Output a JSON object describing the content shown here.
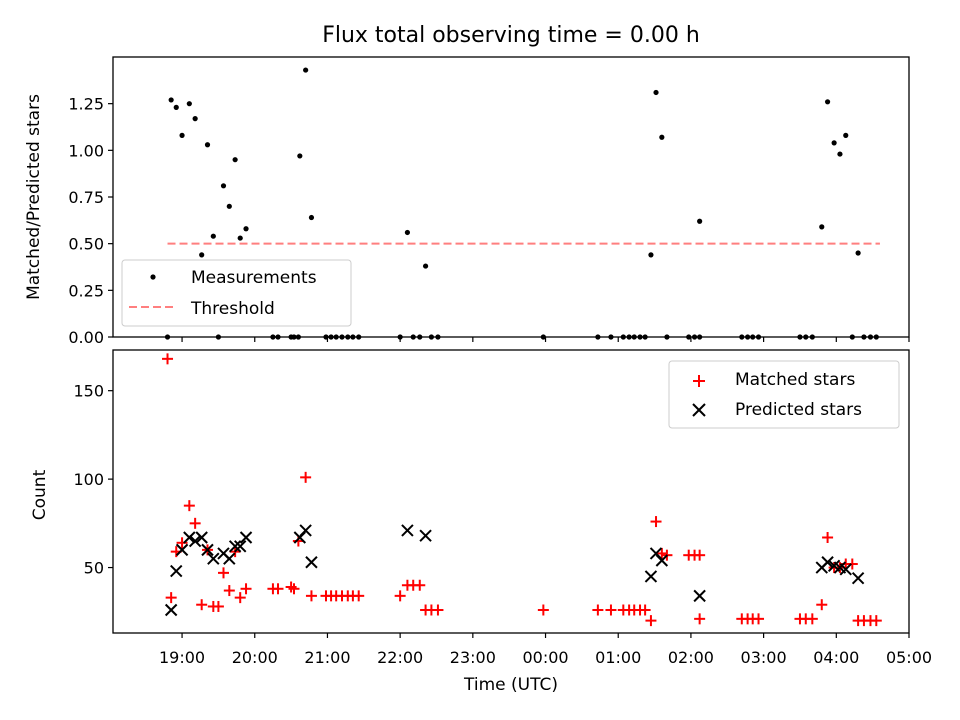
{
  "colors": {
    "measurement": "#000000",
    "threshold": "#ff7f7f",
    "matched": "#ff0000",
    "predicted": "#000000"
  },
  "chart_data": [
    {
      "type": "scatter",
      "title": "Flux total observing time = 0.00 h",
      "xlabel": "",
      "ylabel": "Matched/Predicted stars",
      "x_unit": "hours since 00:00 UTC (negative = previous day)",
      "xlim": [
        -5.95,
        5.0
      ],
      "ylim": [
        0,
        1.5
      ],
      "yticks": [
        0.0,
        0.25,
        0.5,
        0.75,
        1.0,
        1.25
      ],
      "ytick_labels": [
        "0.00",
        "0.25",
        "0.50",
        "0.75",
        "1.00",
        "1.25"
      ],
      "legend": {
        "position": "lower-left",
        "entries": [
          "Measurements",
          "Threshold"
        ]
      },
      "series": [
        {
          "name": "Measurements",
          "marker": "dot",
          "points": [
            [
              -5.2,
              0
            ],
            [
              -5.15,
              1.27
            ],
            [
              -5.08,
              1.23
            ],
            [
              -5.0,
              1.08
            ],
            [
              -4.9,
              1.25
            ],
            [
              -4.82,
              1.17
            ],
            [
              -4.73,
              0.44
            ],
            [
              -4.65,
              1.03
            ],
            [
              -4.57,
              0.54
            ],
            [
              -4.43,
              0.81
            ],
            [
              -4.35,
              0.7
            ],
            [
              -4.27,
              0.95
            ],
            [
              -4.2,
              0.53
            ],
            [
              -4.12,
              0.58
            ],
            [
              -4.5,
              0
            ],
            [
              -3.75,
              0
            ],
            [
              -3.68,
              0
            ],
            [
              -3.5,
              0
            ],
            [
              -3.46,
              0
            ],
            [
              -3.4,
              0
            ],
            [
              -3.38,
              0.97
            ],
            [
              -3.3,
              1.43
            ],
            [
              -3.22,
              0.64
            ],
            [
              -3.02,
              0
            ],
            [
              -2.95,
              0
            ],
            [
              -2.88,
              0
            ],
            [
              -2.8,
              0
            ],
            [
              -2.72,
              0
            ],
            [
              -2.65,
              0
            ],
            [
              -2.57,
              0
            ],
            [
              -2.0,
              0
            ],
            [
              -1.9,
              0.56
            ],
            [
              -1.82,
              0
            ],
            [
              -1.73,
              0
            ],
            [
              -1.65,
              0.38
            ],
            [
              -1.57,
              0
            ],
            [
              -1.48,
              0
            ],
            [
              -0.03,
              0
            ],
            [
              0.72,
              0
            ],
            [
              0.9,
              0
            ],
            [
              1.07,
              0
            ],
            [
              1.15,
              0
            ],
            [
              1.22,
              0
            ],
            [
              1.3,
              0
            ],
            [
              1.37,
              0
            ],
            [
              1.45,
              0.44
            ],
            [
              1.52,
              1.31
            ],
            [
              1.6,
              1.07
            ],
            [
              1.67,
              0
            ],
            [
              1.97,
              0
            ],
            [
              2.05,
              0
            ],
            [
              2.12,
              0.62
            ],
            [
              2.12,
              0
            ],
            [
              2.7,
              0
            ],
            [
              2.78,
              0
            ],
            [
              2.85,
              0
            ],
            [
              2.93,
              0
            ],
            [
              3.5,
              0
            ],
            [
              3.58,
              0
            ],
            [
              3.67,
              0
            ],
            [
              3.8,
              0.59
            ],
            [
              3.88,
              1.26
            ],
            [
              3.97,
              1.04
            ],
            [
              4.05,
              0.98
            ],
            [
              4.13,
              1.08
            ],
            [
              4.22,
              0
            ],
            [
              4.3,
              0.45
            ],
            [
              4.38,
              0
            ],
            [
              4.47,
              0
            ],
            [
              4.55,
              0
            ]
          ]
        },
        {
          "name": "Threshold",
          "style": "dashed-line",
          "x": [
            -5.2,
            4.6
          ],
          "y": [
            0.5,
            0.5
          ]
        }
      ]
    },
    {
      "type": "scatter",
      "title": "",
      "xlabel": "Time (UTC)",
      "ylabel": "Count",
      "x_unit": "hours since 00:00 UTC (negative = previous day)",
      "xlim": [
        -5.95,
        5.0
      ],
      "ylim": [
        13,
        173
      ],
      "yticks": [
        50,
        100,
        150
      ],
      "ytick_labels": [
        "50",
        "100",
        "150"
      ],
      "xticks": [
        -5,
        -4,
        -3,
        -2,
        -1,
        0,
        1,
        2,
        3,
        4,
        5
      ],
      "xtick_labels": [
        "19:00",
        "20:00",
        "21:00",
        "22:00",
        "23:00",
        "00:00",
        "01:00",
        "02:00",
        "03:00",
        "04:00",
        "05:00"
      ],
      "legend": {
        "position": "top-right",
        "entries": [
          "Matched stars",
          "Predicted stars"
        ]
      },
      "series": [
        {
          "name": "Matched stars",
          "marker": "plus",
          "points": [
            [
              -5.2,
              168
            ],
            [
              -5.15,
              33
            ],
            [
              -5.08,
              59
            ],
            [
              -5.0,
              64
            ],
            [
              -4.9,
              85
            ],
            [
              -4.82,
              75
            ],
            [
              -4.73,
              29
            ],
            [
              -4.65,
              60
            ],
            [
              -4.57,
              28
            ],
            [
              -4.5,
              28
            ],
            [
              -4.43,
              47
            ],
            [
              -4.35,
              37
            ],
            [
              -4.27,
              59
            ],
            [
              -4.2,
              33
            ],
            [
              -4.12,
              38
            ],
            [
              -3.75,
              38
            ],
            [
              -3.68,
              38
            ],
            [
              -3.5,
              39
            ],
            [
              -3.46,
              38
            ],
            [
              -3.4,
              65
            ],
            [
              -3.3,
              101
            ],
            [
              -3.22,
              34
            ],
            [
              -3.02,
              34
            ],
            [
              -2.95,
              34
            ],
            [
              -2.88,
              34
            ],
            [
              -2.8,
              34
            ],
            [
              -2.72,
              34
            ],
            [
              -2.65,
              34
            ],
            [
              -2.57,
              34
            ],
            [
              -2.0,
              34
            ],
            [
              -1.9,
              40
            ],
            [
              -1.82,
              40
            ],
            [
              -1.73,
              40
            ],
            [
              -1.65,
              26
            ],
            [
              -1.57,
              26
            ],
            [
              -1.48,
              26
            ],
            [
              -0.03,
              26
            ],
            [
              0.72,
              26
            ],
            [
              0.9,
              26
            ],
            [
              1.07,
              26
            ],
            [
              1.15,
              26
            ],
            [
              1.22,
              26
            ],
            [
              1.3,
              26
            ],
            [
              1.37,
              26
            ],
            [
              1.45,
              20
            ],
            [
              1.52,
              76
            ],
            [
              1.6,
              58
            ],
            [
              1.67,
              57
            ],
            [
              1.97,
              57
            ],
            [
              2.05,
              57
            ],
            [
              2.12,
              57
            ],
            [
              2.12,
              21
            ],
            [
              2.7,
              21
            ],
            [
              2.78,
              21
            ],
            [
              2.85,
              21
            ],
            [
              2.93,
              21
            ],
            [
              3.5,
              21
            ],
            [
              3.58,
              21
            ],
            [
              3.67,
              21
            ],
            [
              3.8,
              29
            ],
            [
              3.88,
              67
            ],
            [
              3.97,
              50
            ],
            [
              4.05,
              50
            ],
            [
              4.13,
              52
            ],
            [
              4.22,
              52
            ],
            [
              4.3,
              20
            ],
            [
              4.38,
              20
            ],
            [
              4.47,
              20
            ],
            [
              4.55,
              20
            ]
          ]
        },
        {
          "name": "Predicted stars",
          "marker": "x",
          "points": [
            [
              -5.15,
              26
            ],
            [
              -5.08,
              48
            ],
            [
              -5.0,
              60
            ],
            [
              -4.9,
              67
            ],
            [
              -4.82,
              65
            ],
            [
              -4.73,
              67
            ],
            [
              -4.65,
              60
            ],
            [
              -4.57,
              55
            ],
            [
              -4.43,
              58
            ],
            [
              -4.35,
              55
            ],
            [
              -4.27,
              62
            ],
            [
              -4.2,
              62
            ],
            [
              -4.12,
              67
            ],
            [
              -3.38,
              67
            ],
            [
              -3.3,
              71
            ],
            [
              -3.22,
              53
            ],
            [
              -1.9,
              71
            ],
            [
              -1.65,
              68
            ],
            [
              1.45,
              45
            ],
            [
              1.52,
              58
            ],
            [
              1.6,
              54
            ],
            [
              2.12,
              34
            ],
            [
              3.8,
              50
            ],
            [
              3.88,
              53
            ],
            [
              3.97,
              51
            ],
            [
              4.05,
              50
            ],
            [
              4.13,
              49
            ],
            [
              4.3,
              44
            ]
          ]
        }
      ]
    }
  ]
}
